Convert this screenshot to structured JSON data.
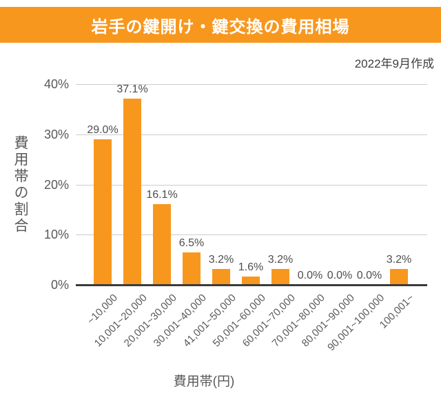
{
  "header": {
    "title": "岩手の鍵開け・鍵交換の費用相場",
    "banner_color": "#F8971D",
    "title_color": "#ffffff"
  },
  "meta": {
    "created_label": "2022年9月作成"
  },
  "chart_data": {
    "type": "bar",
    "title": "岩手の鍵開け・鍵交換の費用相場",
    "categories": [
      "~10,000",
      "10,001~20,000",
      "20,001~30,000",
      "30,001~40,000",
      "41,001~50,000",
      "50,001~60,000",
      "60,001~70,000",
      "70,001~80,000",
      "80,001~90,000",
      "90,001~100,000",
      "100,001~"
    ],
    "values": [
      29.0,
      37.1,
      16.1,
      6.5,
      3.2,
      1.6,
      3.2,
      0.0,
      0.0,
      0.0,
      3.2
    ],
    "value_labels": [
      "29.0%",
      "37.1%",
      "16.1%",
      "6.5%",
      "3.2%",
      "1.6%",
      "3.2%",
      "0.0%",
      "0.0%",
      "0.0%",
      "3.2%"
    ],
    "xlabel": "費用帯(円)",
    "ylabel": "費用帯の割合",
    "ylim": [
      0,
      40
    ],
    "ytick_values": [
      0,
      10,
      20,
      30,
      40
    ],
    "ytick_labels": [
      "0%",
      "10%",
      "20%",
      "30%",
      "40%"
    ],
    "grid": true,
    "legend": "none",
    "bar_color": "#F8971D",
    "grid_color": "#cccccc",
    "axis_color": "#3b3b3b",
    "tick_label_color": "#595959"
  }
}
